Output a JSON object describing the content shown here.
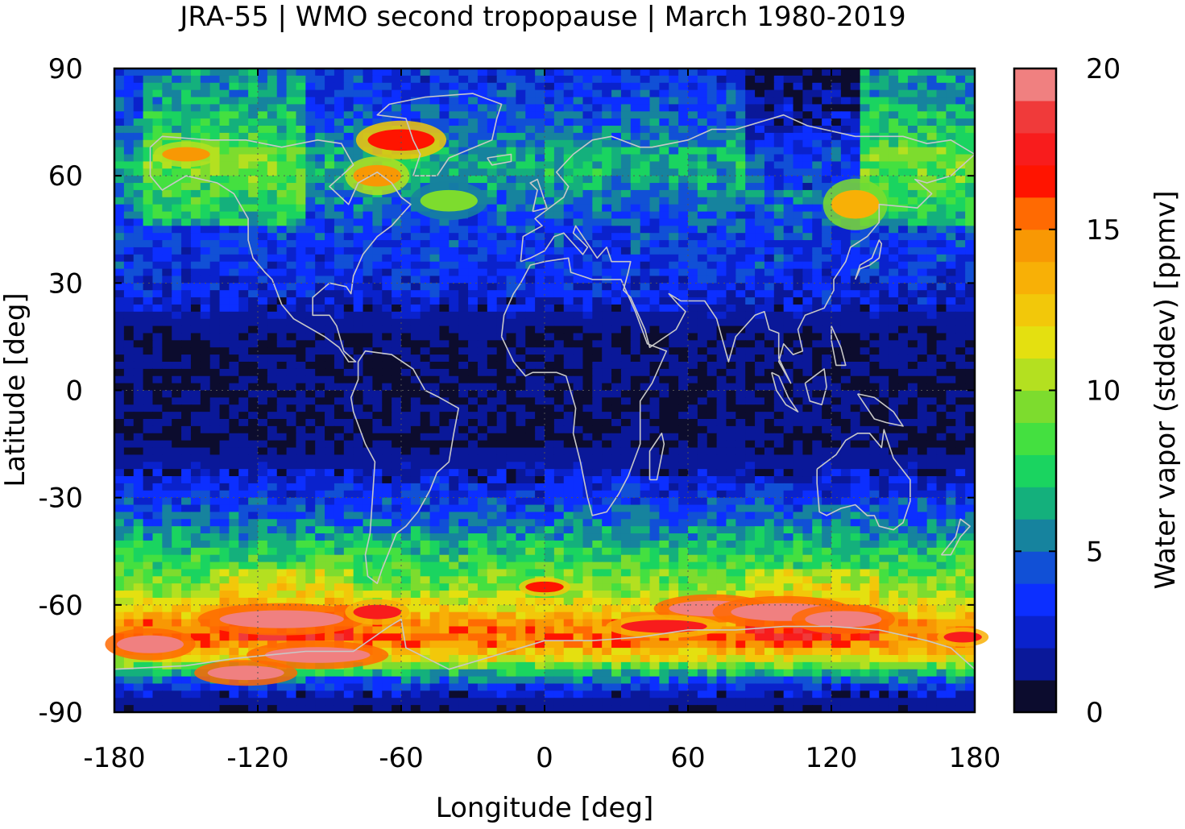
{
  "chart_data": {
    "type": "heatmap",
    "title": "JRA-55 | WMO second tropopause | March 1980-2019",
    "xlabel": "Longitude [deg]",
    "ylabel": "Latitude [deg]",
    "colorbar_label": "Water vapor (stddev) [ppmv]",
    "xlim": [
      -180,
      180
    ],
    "ylim": [
      -90,
      90
    ],
    "x_ticks": [
      -180,
      -120,
      -60,
      0,
      60,
      120,
      180
    ],
    "y_ticks": [
      90,
      60,
      30,
      0,
      -30,
      -60,
      -90
    ],
    "x_tick_labels": [
      "-180",
      "-120",
      "-60",
      "0",
      "60",
      "120",
      "180"
    ],
    "y_tick_labels": [
      "90",
      "60",
      "30",
      "0",
      "-30",
      "-60",
      "-90"
    ],
    "colorbar_range": [
      0,
      20
    ],
    "colorbar_ticks": [
      0,
      5,
      10,
      15,
      20
    ],
    "colorbar_tick_labels": [
      "0",
      "5",
      "10",
      "15",
      "20"
    ],
    "grid": true,
    "overlay": "coastlines",
    "colormap": [
      "#0c0c2e",
      "#0a1899",
      "#0a22cc",
      "#0c2fff",
      "#1150d6",
      "#16839e",
      "#14b07c",
      "#1ad460",
      "#44e040",
      "#7ddc2e",
      "#b4e020",
      "#e4e010",
      "#f2c80a",
      "#f8b006",
      "#f89804",
      "#ff6a02",
      "#ff1400",
      "#f81c1c",
      "#f03a3a",
      "#f08080",
      "#ffcccc"
    ],
    "zonal_profile": {
      "lat": [
        -90,
        -85,
        -80,
        -75,
        -70,
        -65,
        -60,
        -55,
        -50,
        -45,
        -40,
        -35,
        -30,
        -25,
        -20,
        -15,
        -10,
        -5,
        0,
        5,
        10,
        15,
        20,
        25,
        30,
        35,
        40,
        45,
        50,
        55,
        60,
        65,
        70,
        75,
        80,
        85,
        90
      ],
      "value": [
        0.5,
        1.5,
        5,
        11,
        15,
        14,
        11,
        9,
        8,
        7,
        5.5,
        4,
        3,
        2,
        1,
        0.5,
        0.5,
        0.5,
        0.5,
        0.5,
        0.5,
        0.5,
        1,
        2,
        2.5,
        3,
        3,
        3.5,
        4,
        5,
        6,
        6,
        5,
        4,
        3.5,
        3,
        3
      ]
    }
  }
}
